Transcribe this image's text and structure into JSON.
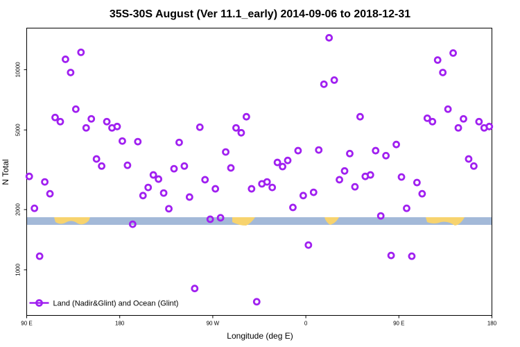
{
  "chart_data": {
    "type": "scatter",
    "title": "35S-30S August (Ver 11.1_early)   2014-09-06 to 2018-12-31",
    "x_label": "Longitude (deg E)",
    "y_label": "N Total",
    "x": [
      92.5,
      97.5,
      102.5,
      107.5,
      112.5,
      117.5,
      122.5,
      127.5,
      132.5,
      137.5,
      142.5,
      147.5,
      152.5,
      157.5,
      162.5,
      167.5,
      172.5,
      177.5,
      182.5,
      187.5,
      192.5,
      197.5,
      202.5,
      207.5,
      212.5,
      217.5,
      222.5,
      227.5,
      232.5,
      237.5,
      242.5,
      247.5,
      252.5,
      257.5,
      262.5,
      267.5,
      272.5,
      277.5,
      282.5,
      287.5,
      292.5,
      297.5,
      302.5,
      307.5,
      312.5,
      317.5,
      322.5,
      327.5,
      332.5,
      337.5,
      342.5,
      347.5,
      352.5,
      357.5,
      362.5,
      367.5,
      372.5,
      377.5,
      382.5,
      387.5,
      392.5,
      397.5,
      402.5,
      407.5,
      412.5,
      417.5,
      422.5,
      427.5,
      432.5,
      437.5,
      442.5,
      447.5,
      452.5,
      457.5,
      462.5,
      467.5,
      472.5,
      477.5,
      482.5,
      487.5,
      492.5,
      497.5,
      502.5,
      507.5,
      512.5,
      517.5,
      522.5,
      527.5,
      532.5,
      537.5
    ],
    "series": [
      {
        "name": "Land (Nadir&Glint) and Ocean (Glint)",
        "color": "#a020f0",
        "values": [
          2930,
          2030,
          1170,
          2750,
          2400,
          5770,
          5500,
          11270,
          9680,
          6350,
          12210,
          5120,
          5680,
          3580,
          3300,
          5500,
          5120,
          5200,
          4400,
          3330,
          1690,
          4370,
          2350,
          2580,
          2980,
          2840,
          2420,
          2020,
          3200,
          4330,
          3300,
          2310,
          807,
          5160,
          2820,
          1790,
          2540,
          1820,
          3880,
          3230,
          5120,
          4840,
          5820,
          2540,
          693,
          2690,
          2750,
          2580,
          3440,
          3280,
          3520,
          2050,
          3940,
          2350,
          1330,
          2440,
          3970,
          8460,
          14430,
          8870,
          2820,
          3120,
          3810,
          2600,
          5820,
          2930,
          2980,
          3940,
          1860,
          3720,
          1180,
          4230,
          2910,
          2030,
          1170,
          2730,
          2400,
          5720,
          5500,
          11170,
          9680,
          6350,
          12110,
          5120,
          5680,
          3580,
          3300,
          5500,
          5120,
          5200
        ]
      }
    ],
    "xlim": [
      90,
      540
    ],
    "xticks": [
      {
        "value": 90,
        "label": "90 E"
      },
      180,
      {
        "value": 270,
        "label": "90 W"
      },
      {
        "value": 360,
        "label": "0"
      },
      {
        "value": 450,
        "label": "90 E"
      },
      {
        "value": 540,
        "label": "180"
      }
    ],
    "ylim": [
      592,
      16130
    ],
    "yticks": [
      1000,
      2000,
      5000,
      10000
    ],
    "y_scale": "log",
    "grid": false,
    "legend_position": "bottom-left"
  }
}
